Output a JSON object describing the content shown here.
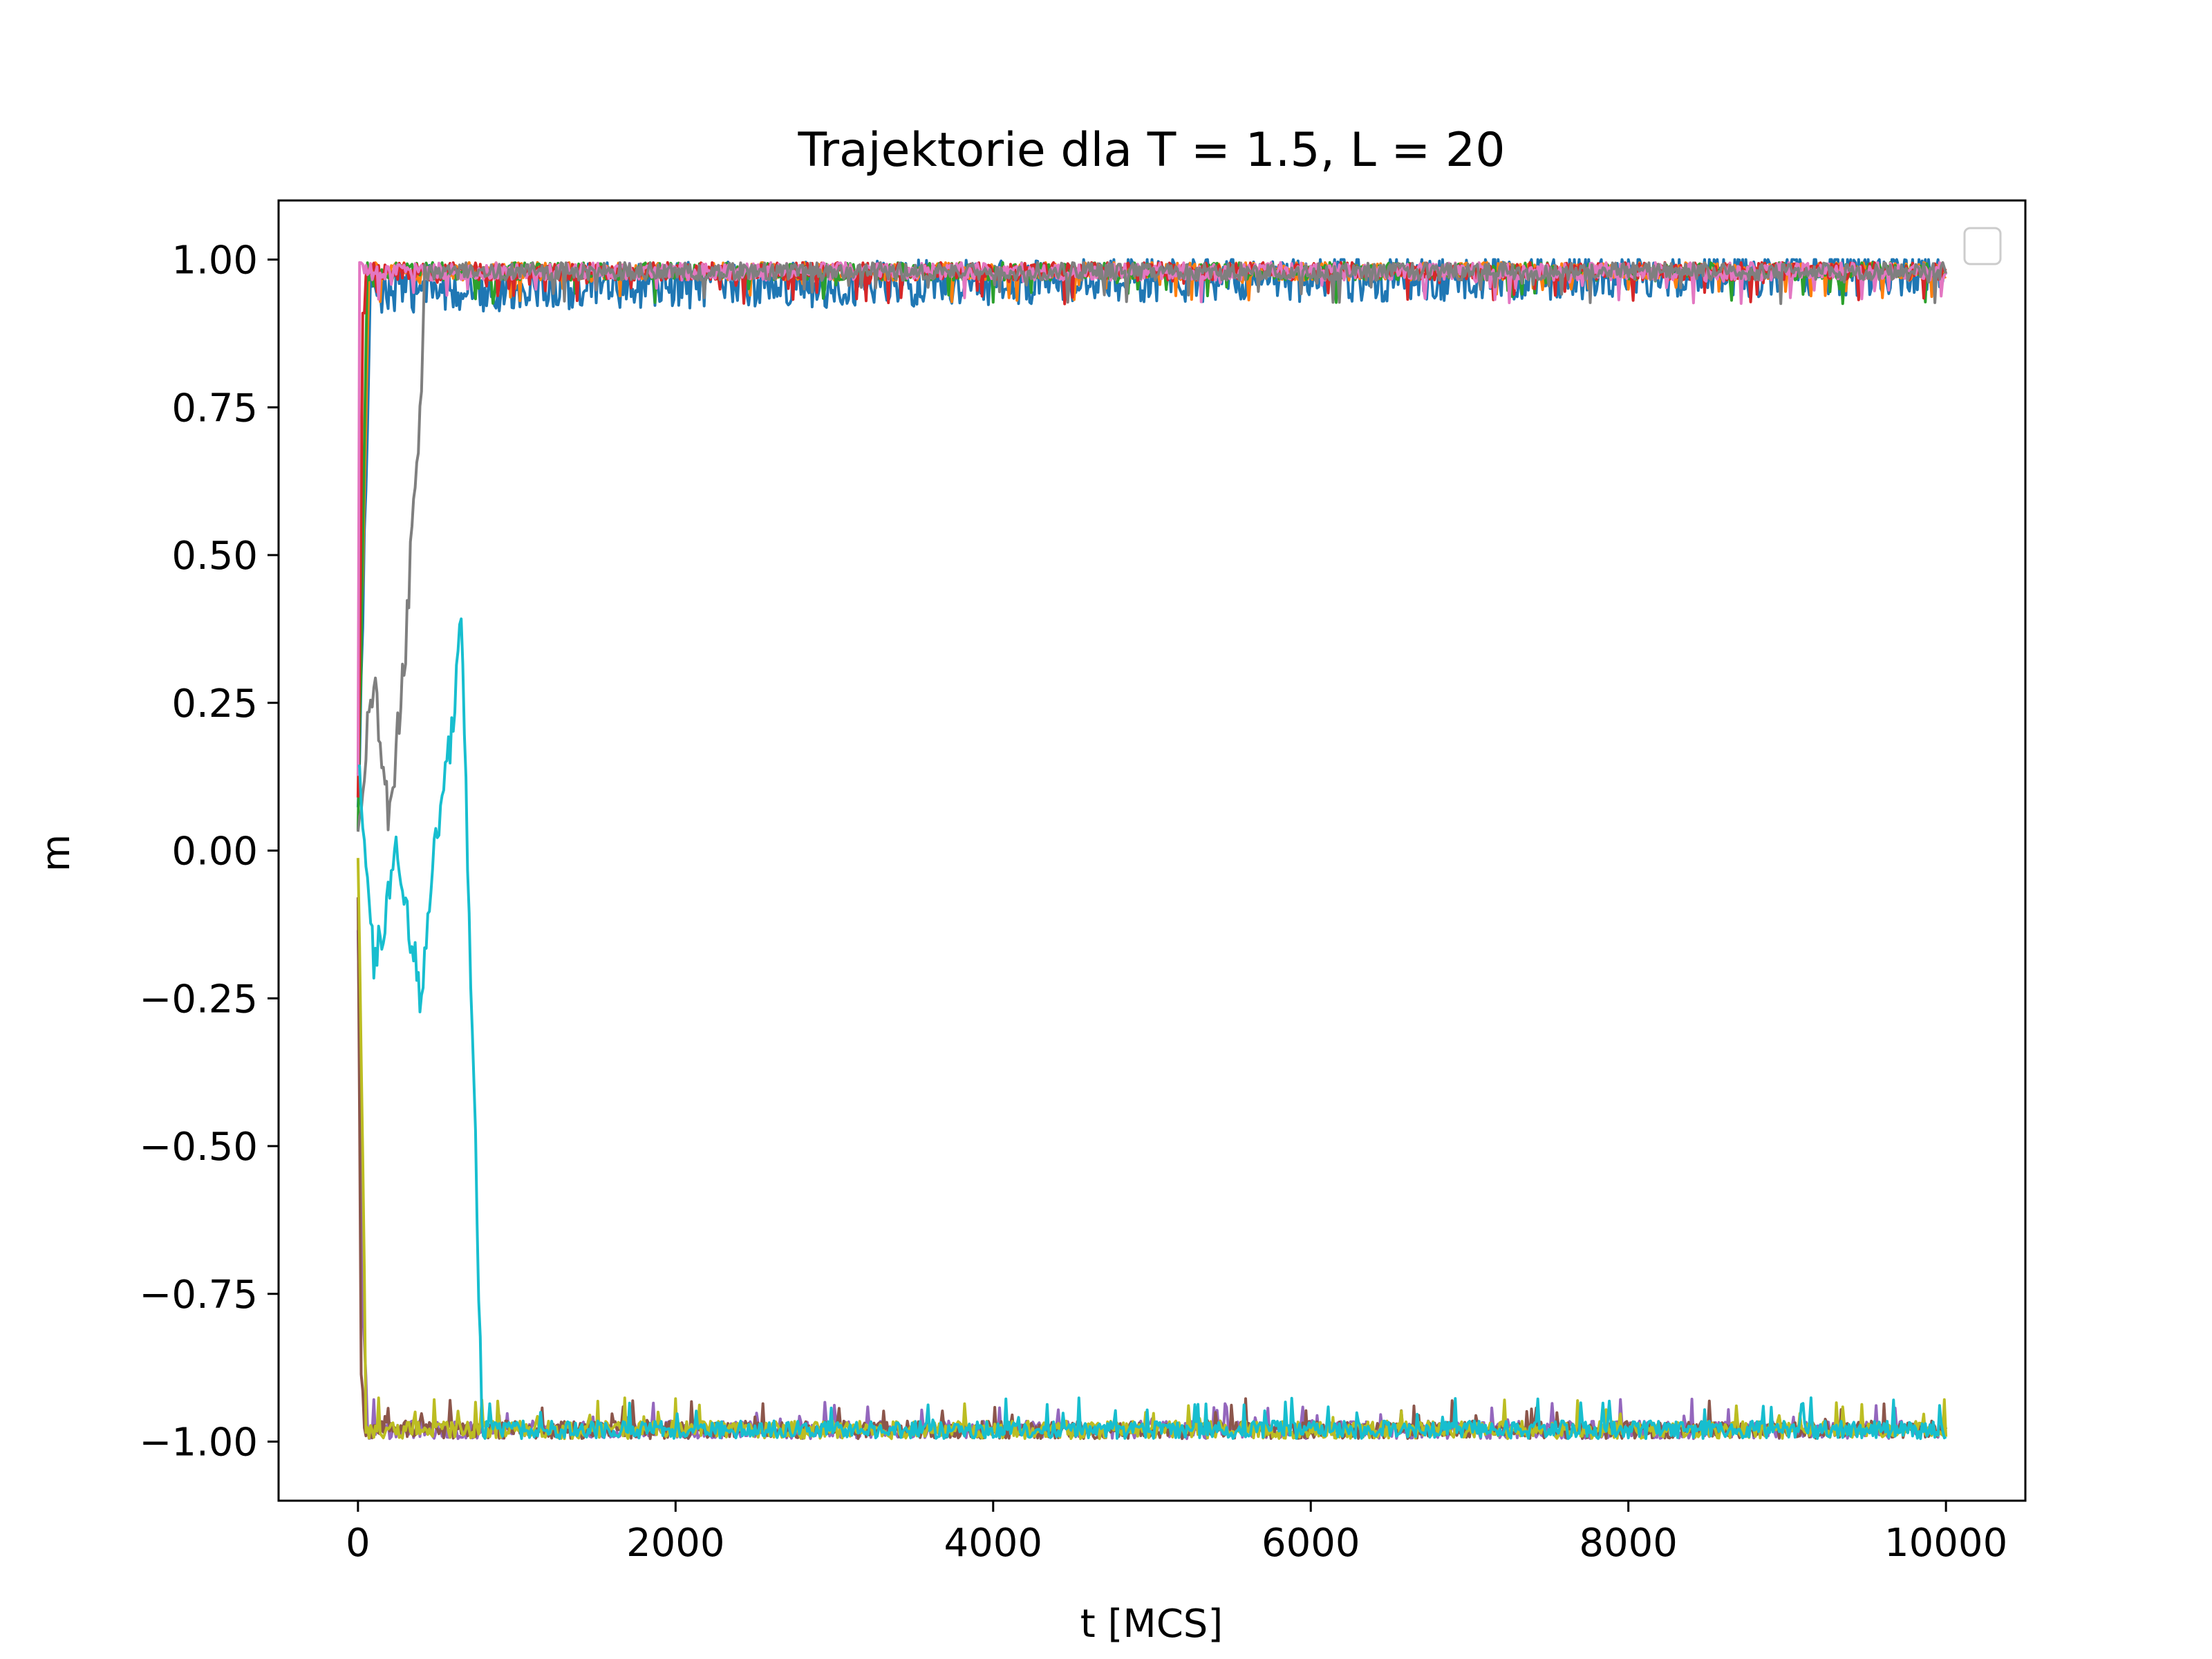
{
  "chart_data": {
    "type": "line",
    "title": "Trajektorie dla T = 1.5, L = 20",
    "xlabel": "t [MCS]",
    "ylabel": "m",
    "xlim": [
      -500,
      10500
    ],
    "ylim": [
      -1.1,
      1.1
    ],
    "x_ticks": [
      0,
      2000,
      4000,
      6000,
      8000,
      10000
    ],
    "x_tick_labels": [
      "0",
      "2000",
      "4000",
      "6000",
      "8000",
      "10000"
    ],
    "y_ticks": [
      1.0,
      0.75,
      0.5,
      0.25,
      0.0,
      -0.25,
      -0.5,
      -0.75,
      -1.0
    ],
    "y_tick_labels": [
      "1.00",
      "0.75",
      "0.50",
      "0.25",
      "0.00",
      "−0.25",
      "−0.50",
      "−0.75",
      "−1.00"
    ],
    "grid": false,
    "legend": "top-right (empty)",
    "series": [
      {
        "color": "#1f77b4",
        "final": "up",
        "approx_points": [
          [
            0,
            0.05
          ],
          [
            30,
            0.4
          ],
          [
            80,
            0.95
          ],
          [
            10000,
            0.98
          ]
        ]
      },
      {
        "color": "#ff7f0e",
        "final": "up",
        "approx_points": [
          [
            0,
            0.1
          ],
          [
            40,
            0.6
          ],
          [
            70,
            0.98
          ],
          [
            10000,
            0.98
          ]
        ]
      },
      {
        "color": "#2ca02c",
        "final": "up",
        "approx_points": [
          [
            0,
            0.0
          ],
          [
            40,
            0.7
          ],
          [
            60,
            0.98
          ],
          [
            10000,
            0.98
          ]
        ]
      },
      {
        "color": "#d62728",
        "final": "up",
        "approx_points": [
          [
            0,
            0.05
          ],
          [
            30,
            0.9
          ],
          [
            50,
            0.98
          ],
          [
            10000,
            0.98
          ]
        ]
      },
      {
        "color": "#9467bd",
        "final": "down",
        "approx_points": [
          [
            0,
            -0.1
          ],
          [
            30,
            -0.8
          ],
          [
            60,
            -0.98
          ],
          [
            10000,
            -0.98
          ]
        ]
      },
      {
        "color": "#8c564b",
        "final": "down",
        "approx_points": [
          [
            0,
            -0.05
          ],
          [
            20,
            -0.9
          ],
          [
            40,
            -0.99
          ],
          [
            10000,
            -0.98
          ]
        ]
      },
      {
        "color": "#e377c2",
        "final": "up",
        "approx_points": [
          [
            0,
            0.15
          ],
          [
            10,
            0.99
          ],
          [
            10000,
            0.98
          ]
        ]
      },
      {
        "color": "#7f7f7f",
        "final": "up",
        "approx_points": [
          [
            0,
            0.05
          ],
          [
            100,
            0.3
          ],
          [
            200,
            0.05
          ],
          [
            300,
            0.35
          ],
          [
            400,
            0.8
          ],
          [
            420,
            0.98
          ],
          [
            10000,
            0.98
          ]
        ]
      },
      {
        "color": "#bcbd22",
        "final": "down",
        "approx_points": [
          [
            0,
            0.0
          ],
          [
            30,
            -0.5
          ],
          [
            50,
            -0.98
          ],
          [
            760,
            -0.98
          ],
          [
            10000,
            -0.98
          ]
        ]
      },
      {
        "color": "#17becf",
        "final": "down",
        "approx_points": [
          [
            0,
            0.15
          ],
          [
            100,
            -0.2
          ],
          [
            250,
            0.0
          ],
          [
            400,
            -0.25
          ],
          [
            500,
            0.05
          ],
          [
            600,
            0.2
          ],
          [
            650,
            0.4
          ],
          [
            700,
            -0.1
          ],
          [
            750,
            -0.6
          ],
          [
            780,
            -0.98
          ],
          [
            10000,
            -0.98
          ]
        ]
      }
    ]
  }
}
